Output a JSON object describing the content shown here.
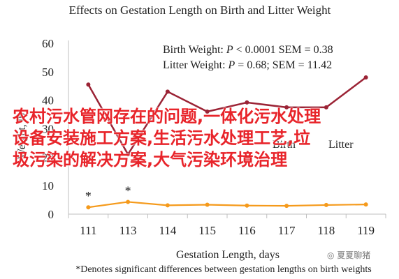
{
  "chart_data": {
    "type": "line",
    "title": "Effects on Gestation Length on Birth and Litter Weight",
    "xlabel": "Gestation Length, days",
    "ylabel": "Weight, lb",
    "categories": [
      "111",
      "113",
      "114",
      "115",
      "116",
      "117",
      "118",
      "119"
    ],
    "ylim": [
      0,
      60
    ],
    "yticks": [
      "0",
      "10",
      "20",
      "30",
      "40",
      "50",
      "60"
    ],
    "series": [
      {
        "name": "Litter",
        "color": "#9b2335",
        "values": [
          45.5,
          21,
          43,
          36,
          39.2,
          37.5,
          37.5,
          48
        ]
      },
      {
        "name": "Birth",
        "color": "#f59a1b",
        "values": [
          2.4,
          4.3,
          3.1,
          3.3,
          3.0,
          2.9,
          3.2,
          3.4
        ]
      }
    ],
    "significance_markers": [
      {
        "category": "111",
        "label": "*"
      },
      {
        "category": "113",
        "label": "*"
      }
    ],
    "stats_text": [
      {
        "prefix": "Birth Weight: ",
        "p": "P",
        "rest": " < 0.0001 SEM = 0.38"
      },
      {
        "prefix": "Litter Weight: ",
        "p": "P",
        "rest": " = 0.68; SEM = 11.42"
      }
    ],
    "footnote": "*Denotes significant differences between gestation lengths on birth weights",
    "grid": false
  },
  "overlay_text": {
    "line1": "农村污水管网存在的问题,一体化污水处理",
    "line2": "设备安装施工方案,生活污水处理工艺,垃",
    "line3": "圾污染的解决方案,大气污染环境治理"
  },
  "watermark": "夏夏聊猪"
}
